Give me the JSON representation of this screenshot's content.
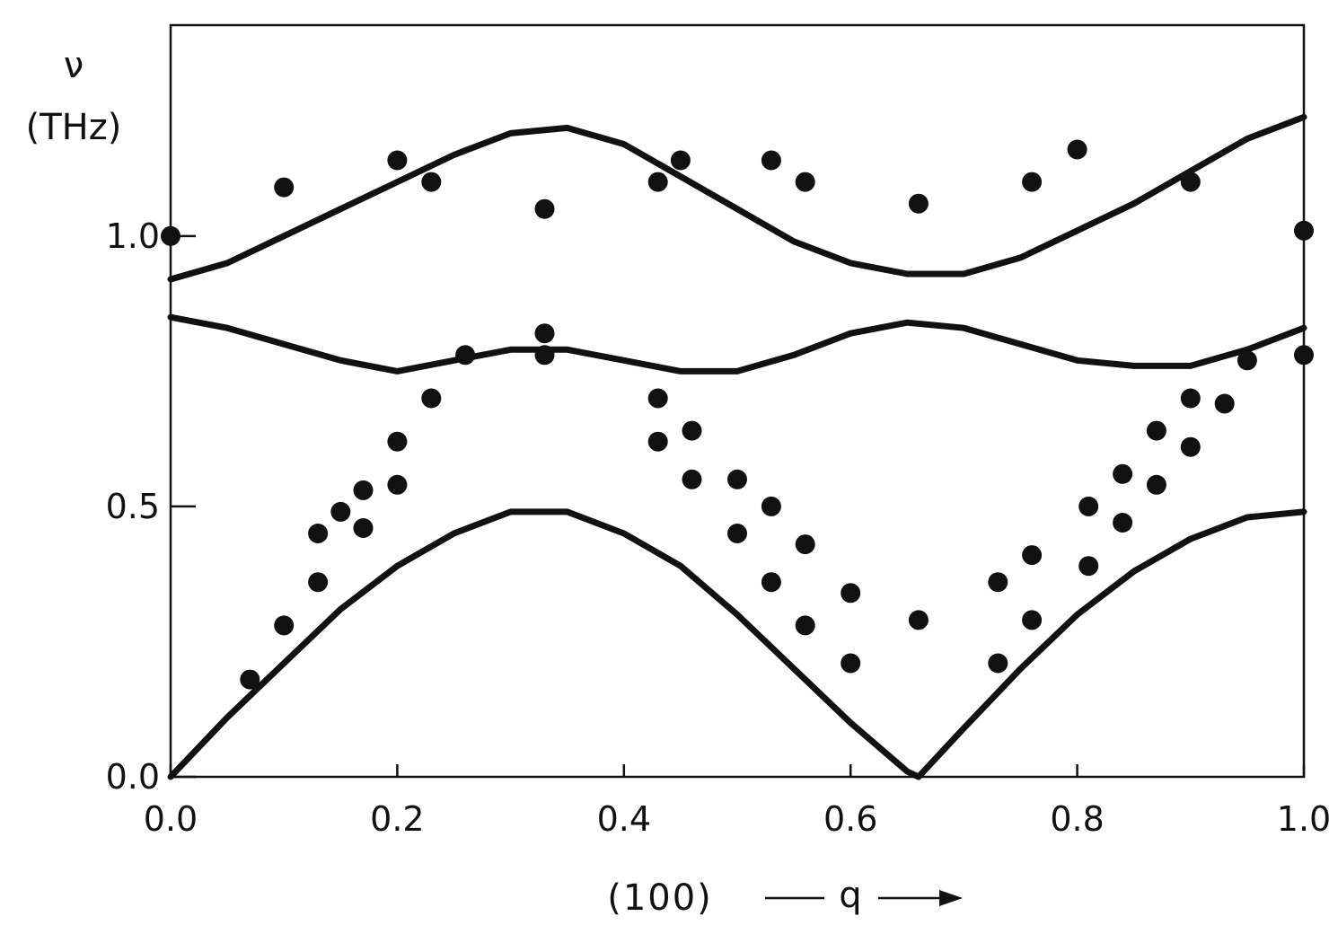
{
  "chart_data": {
    "type": "scatter",
    "title": "",
    "ylabel_symbol": "ν",
    "ylabel_unit": "(THz)",
    "xlabel_prefix": "(100)",
    "xlabel_var": "q",
    "xlim": [
      0.0,
      1.0
    ],
    "ylim": [
      0.0,
      1.39
    ],
    "grid": false,
    "legend": "none",
    "x_ticks": [
      {
        "value": 0.0,
        "label": "0.0"
      },
      {
        "value": 0.2,
        "label": "0.2"
      },
      {
        "value": 0.4,
        "label": "0.4"
      },
      {
        "value": 0.6,
        "label": "0.6"
      },
      {
        "value": 0.8,
        "label": "0.8"
      },
      {
        "value": 1.0,
        "label": "1.0"
      }
    ],
    "y_ticks": [
      {
        "value": 0.0,
        "label": "0.0"
      },
      {
        "value": 0.5,
        "label": "0.5"
      },
      {
        "value": 1.0,
        "label": "1.0"
      }
    ],
    "curves": [
      {
        "x": [
          0.0,
          0.05,
          0.1,
          0.15,
          0.2,
          0.25,
          0.3,
          0.35,
          0.4,
          0.45,
          0.5,
          0.55,
          0.6,
          0.65,
          0.66
        ],
        "y": [
          0.0,
          0.11,
          0.21,
          0.31,
          0.39,
          0.45,
          0.49,
          0.49,
          0.45,
          0.39,
          0.3,
          0.2,
          0.1,
          0.01,
          0.0
        ]
      },
      {
        "x": [
          0.66,
          0.7,
          0.75,
          0.8,
          0.85,
          0.9,
          0.95,
          1.0
        ],
        "y": [
          0.0,
          0.09,
          0.2,
          0.3,
          0.38,
          0.44,
          0.48,
          0.49
        ]
      },
      {
        "x": [
          0.0,
          0.05,
          0.1,
          0.15,
          0.2,
          0.25,
          0.3,
          0.35,
          0.4,
          0.45,
          0.5,
          0.55,
          0.6,
          0.65,
          0.7,
          0.75,
          0.8,
          0.85,
          0.9,
          0.95,
          1.0
        ],
        "y": [
          0.85,
          0.83,
          0.8,
          0.77,
          0.75,
          0.77,
          0.79,
          0.79,
          0.77,
          0.75,
          0.75,
          0.78,
          0.82,
          0.84,
          0.83,
          0.8,
          0.77,
          0.76,
          0.76,
          0.79,
          0.83
        ]
      },
      {
        "x": [
          0.0,
          0.05,
          0.1,
          0.15,
          0.2,
          0.25,
          0.3,
          0.35,
          0.4,
          0.45,
          0.5,
          0.55,
          0.6,
          0.65,
          0.7,
          0.75,
          0.8,
          0.85,
          0.9,
          0.95,
          1.0
        ],
        "y": [
          0.92,
          0.95,
          1.0,
          1.05,
          1.1,
          1.15,
          1.19,
          1.2,
          1.17,
          1.11,
          1.05,
          0.99,
          0.95,
          0.93,
          0.93,
          0.96,
          1.01,
          1.06,
          1.12,
          1.18,
          1.22
        ]
      }
    ],
    "points": {
      "x": [
        0.0,
        0.1,
        0.2,
        0.23,
        0.33,
        0.43,
        0.45,
        0.53,
        0.56,
        0.66,
        0.76,
        0.8,
        0.9,
        1.0,
        0.33,
        0.33,
        0.26,
        0.23,
        0.2,
        0.2,
        0.17,
        0.17,
        0.15,
        0.13,
        0.13,
        0.1,
        0.07,
        0.43,
        0.43,
        0.46,
        0.46,
        0.5,
        0.5,
        0.53,
        0.53,
        0.56,
        0.56,
        0.6,
        0.6,
        0.66,
        0.73,
        0.73,
        0.76,
        0.76,
        0.81,
        0.81,
        0.84,
        0.84,
        0.87,
        0.87,
        0.9,
        0.9,
        0.93,
        0.95,
        1.0
      ],
      "y": [
        1.0,
        1.09,
        1.14,
        1.1,
        1.05,
        1.1,
        1.14,
        1.14,
        1.1,
        1.06,
        1.1,
        1.16,
        1.1,
        1.01,
        0.82,
        0.78,
        0.78,
        0.7,
        0.62,
        0.54,
        0.53,
        0.46,
        0.49,
        0.45,
        0.36,
        0.28,
        0.18,
        0.7,
        0.62,
        0.64,
        0.55,
        0.55,
        0.45,
        0.5,
        0.36,
        0.43,
        0.28,
        0.34,
        0.21,
        0.29,
        0.36,
        0.21,
        0.41,
        0.29,
        0.5,
        0.39,
        0.56,
        0.47,
        0.64,
        0.54,
        0.7,
        0.61,
        0.69,
        0.77,
        0.78
      ]
    }
  }
}
